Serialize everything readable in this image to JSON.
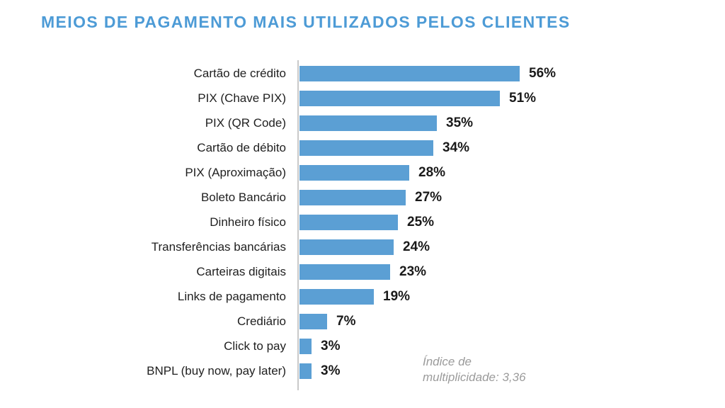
{
  "title": "MEIOS DE PAGAMENTO MAIS UTILIZADOS PELOS CLIENTES",
  "chart_data": {
    "type": "bar",
    "orientation": "horizontal",
    "title": "MEIOS DE PAGAMENTO MAIS UTILIZADOS PELOS CLIENTES",
    "categories": [
      "Cartão de crédito",
      "PIX (Chave PIX)",
      "PIX (QR Code)",
      "Cartão de débito",
      "PIX (Aproximação)",
      "Boleto Bancário",
      "Dinheiro físico",
      "Transferências bancárias",
      "Carteiras digitais",
      "Links de pagamento",
      "Crediário",
      "Click to pay",
      "BNPL (buy now, pay later)"
    ],
    "values": [
      56,
      51,
      35,
      34,
      28,
      27,
      25,
      24,
      23,
      19,
      7,
      3,
      3
    ],
    "value_suffix": "%",
    "xlim": [
      0,
      60
    ],
    "grid": false,
    "legend": false,
    "annotation": "Índice de multiplicidade: 3,36"
  },
  "annotation": {
    "line1": "Índice de",
    "line2": "multiplicidade: 3,36"
  },
  "colors": {
    "title": "#4D9BD6",
    "bar": "#5B9FD4",
    "axis": "#C9C9C9",
    "annotation": "#9B9B9B"
  }
}
